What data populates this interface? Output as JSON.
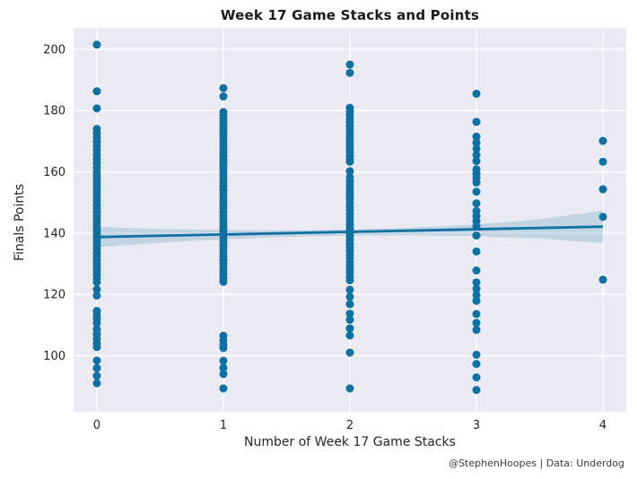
{
  "header": {
    "title": "Week 17 Game Stacks and Points"
  },
  "footer": {
    "attribution": "@StephenHoopes | Data: Underdog"
  },
  "colors": {
    "figure_bg": "#ffffff",
    "axes_bg": "#eaeaf2",
    "grid": "#ffffff",
    "point": "#1070a1",
    "regression_line": "#1070a1",
    "ci_band": "#1070a1",
    "tick_text": "#262626",
    "title_text": "#1a1a1a"
  },
  "chart_data": {
    "type": "scatter",
    "title": "Week 17 Game Stacks and Points",
    "xlabel": "Number of Week 17 Game Stacks",
    "ylabel": "Finals Points",
    "x_ticks": [
      0,
      1,
      2,
      3,
      4
    ],
    "y_ticks": [
      100,
      120,
      140,
      160,
      180,
      200
    ],
    "xlim": [
      -0.184,
      4.184
    ],
    "ylim": [
      81.7,
      207.0
    ],
    "grid": true,
    "legend": "none",
    "series": [
      {
        "name": "stacks-0",
        "x": 0,
        "values": [
          201.5,
          186.3,
          180.7,
          174,
          172.6,
          171.2,
          169.8,
          168.4,
          167,
          165.6,
          164.2,
          162.8,
          161.4,
          160,
          158.8,
          157.6,
          156.4,
          155.2,
          154,
          152.8,
          151.6,
          150.4,
          149.2,
          148,
          146.8,
          145.6,
          144.4,
          143.2,
          142,
          140.8,
          139.6,
          138.4,
          137.2,
          136,
          134.8,
          133.6,
          132.4,
          131.2,
          130,
          128.8,
          127.6,
          126.4,
          125.2,
          124,
          121.6,
          119.6,
          114.6,
          113.2,
          112,
          110.6,
          108.6,
          107,
          105.4,
          104,
          102.8,
          98.4,
          95.9,
          93.4,
          91
        ]
      },
      {
        "name": "stacks-1",
        "x": 1,
        "values": [
          187.3,
          184.6,
          179.5,
          178.4,
          177.3,
          176.2,
          175.1,
          174,
          172.9,
          171.8,
          170.7,
          169.6,
          168.5,
          167.4,
          166.3,
          165.2,
          164.1,
          163.5,
          162.5,
          161.3,
          160.1,
          158.9,
          157.7,
          156.5,
          155.3,
          154.1,
          152.9,
          151.7,
          150.5,
          149.3,
          148.1,
          146.9,
          145.7,
          144.5,
          143.3,
          142.1,
          140.9,
          139.7,
          138.5,
          137.3,
          136.1,
          134.9,
          133.7,
          132.5,
          131.3,
          130.1,
          128.9,
          127.7,
          126.5,
          125.3,
          124.1,
          106.5,
          105,
          103.5,
          102.5,
          98.3,
          96,
          94,
          89.3
        ]
      },
      {
        "name": "stacks-2",
        "x": 2,
        "values": [
          195,
          192.3,
          180.9,
          179.7,
          178.5,
          177.3,
          176.1,
          174.9,
          173.7,
          172.5,
          171.3,
          170.1,
          168.9,
          167.7,
          166.5,
          165.3,
          164.1,
          163.3,
          160.2,
          158.2,
          157,
          155.8,
          154.6,
          153.4,
          152.2,
          151,
          149.8,
          148.6,
          147.4,
          146.2,
          145,
          143.8,
          142.6,
          141.4,
          140.2,
          139,
          137.8,
          136.6,
          135.4,
          134.2,
          133,
          131.8,
          130.6,
          129.4,
          128.2,
          127,
          125.8,
          124.6,
          121.5,
          119.2,
          116.8,
          113.7,
          111.7,
          108.9,
          106.6,
          101,
          89.3
        ]
      },
      {
        "name": "stacks-3",
        "x": 3,
        "values": [
          185.5,
          176.3,
          171.5,
          169.5,
          167.5,
          165.5,
          163.5,
          160.8,
          159.4,
          158,
          156.5,
          153.5,
          149.7,
          147.2,
          145.6,
          144,
          142.3,
          139.2,
          134,
          127.8,
          123.9,
          121.8,
          119.8,
          117.9,
          113.6,
          110.7,
          108.4,
          100.3,
          97.3,
          92.9,
          88.8
        ]
      },
      {
        "name": "stacks-4",
        "x": 4,
        "values": [
          170.1,
          163.3,
          154.3,
          145.3,
          124.8
        ]
      }
    ],
    "regression": {
      "line": {
        "x": [
          0,
          4
        ],
        "y": [
          138.7,
          142.1
        ]
      },
      "ci_band": {
        "x": [
          0,
          0.5,
          1,
          1.5,
          2,
          2.5,
          3,
          3.5,
          4
        ],
        "hi": [
          142.0,
          141.3,
          141.0,
          140.9,
          141.2,
          141.8,
          142.8,
          144.5,
          147.3
        ],
        "lo": [
          135.4,
          136.9,
          138.0,
          138.8,
          139.2,
          139.3,
          139.0,
          138.2,
          136.8
        ]
      }
    }
  }
}
